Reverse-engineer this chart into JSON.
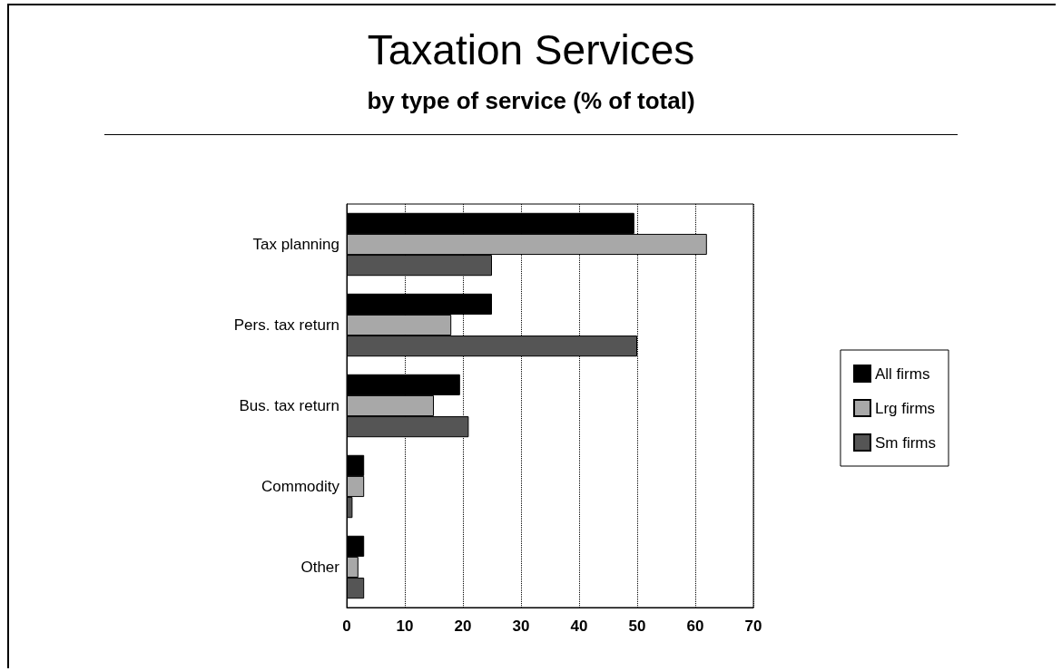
{
  "chart_data": {
    "type": "bar",
    "orientation": "horizontal",
    "title": "Taxation Services",
    "subtitle": "by type of service (% of total)",
    "categories": [
      "Tax planning",
      "Pers. tax return",
      "Bus. tax return",
      "Commodity",
      "Other"
    ],
    "series": [
      {
        "name": "All firms",
        "color": "#000000",
        "values": [
          49.5,
          25,
          19.5,
          3,
          3
        ]
      },
      {
        "name": "Lrg firms",
        "color": "#a8a8a8",
        "values": [
          62,
          18,
          15,
          3,
          2
        ]
      },
      {
        "name": "Sm firms",
        "color": "#555555",
        "values": [
          25,
          50,
          21,
          1,
          3
        ]
      }
    ],
    "xlim": [
      0,
      70
    ],
    "xticks": [
      0,
      10,
      20,
      30,
      40,
      50,
      60,
      70
    ],
    "grid": "x",
    "legend": "right"
  }
}
